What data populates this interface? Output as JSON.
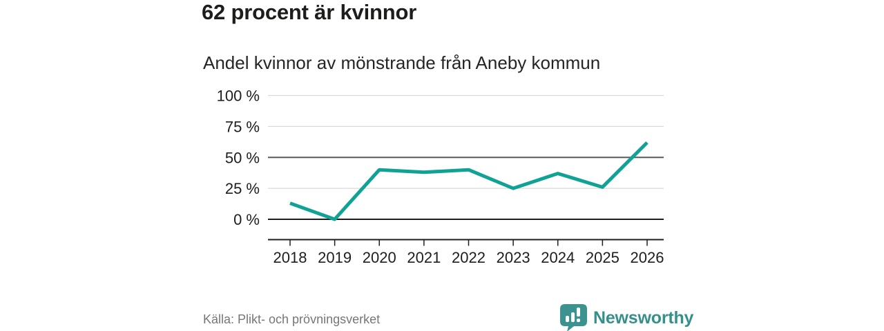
{
  "header": {
    "title": "62 procent är kvinnor",
    "subtitle": "Andel kvinnor av mönstrande från Aneby kommun"
  },
  "chart_data": {
    "type": "line",
    "title": "Andel kvinnor av mönstrande från Aneby kommun",
    "x": [
      "2018",
      "2019",
      "2020",
      "2021",
      "2022",
      "2023",
      "2024",
      "2025",
      "2026"
    ],
    "series": [
      {
        "name": "andel-kvinnor",
        "values": [
          13,
          0,
          40,
          38,
          40,
          25,
          37,
          26,
          62
        ]
      }
    ],
    "unit": "%",
    "ylim": [
      0,
      100
    ],
    "yticks": [
      0,
      25,
      50,
      75,
      100
    ],
    "ytick_suffix": " %",
    "grid": "horizontal",
    "legend": "none",
    "line_color": "#11a296",
    "axis_color": "#1d1d1b",
    "gridline_color_light": "#d9d9d9",
    "gridline_color_mid": "#595959"
  },
  "footer": {
    "source": "Källa: Plikt- och prövningsverket",
    "brand": "Newsworthy",
    "brand_color": "#35908c",
    "brand_icon": "newsworthy-speech-bubble-barchart-icon",
    "brand_icon_color": "#3a938e"
  }
}
